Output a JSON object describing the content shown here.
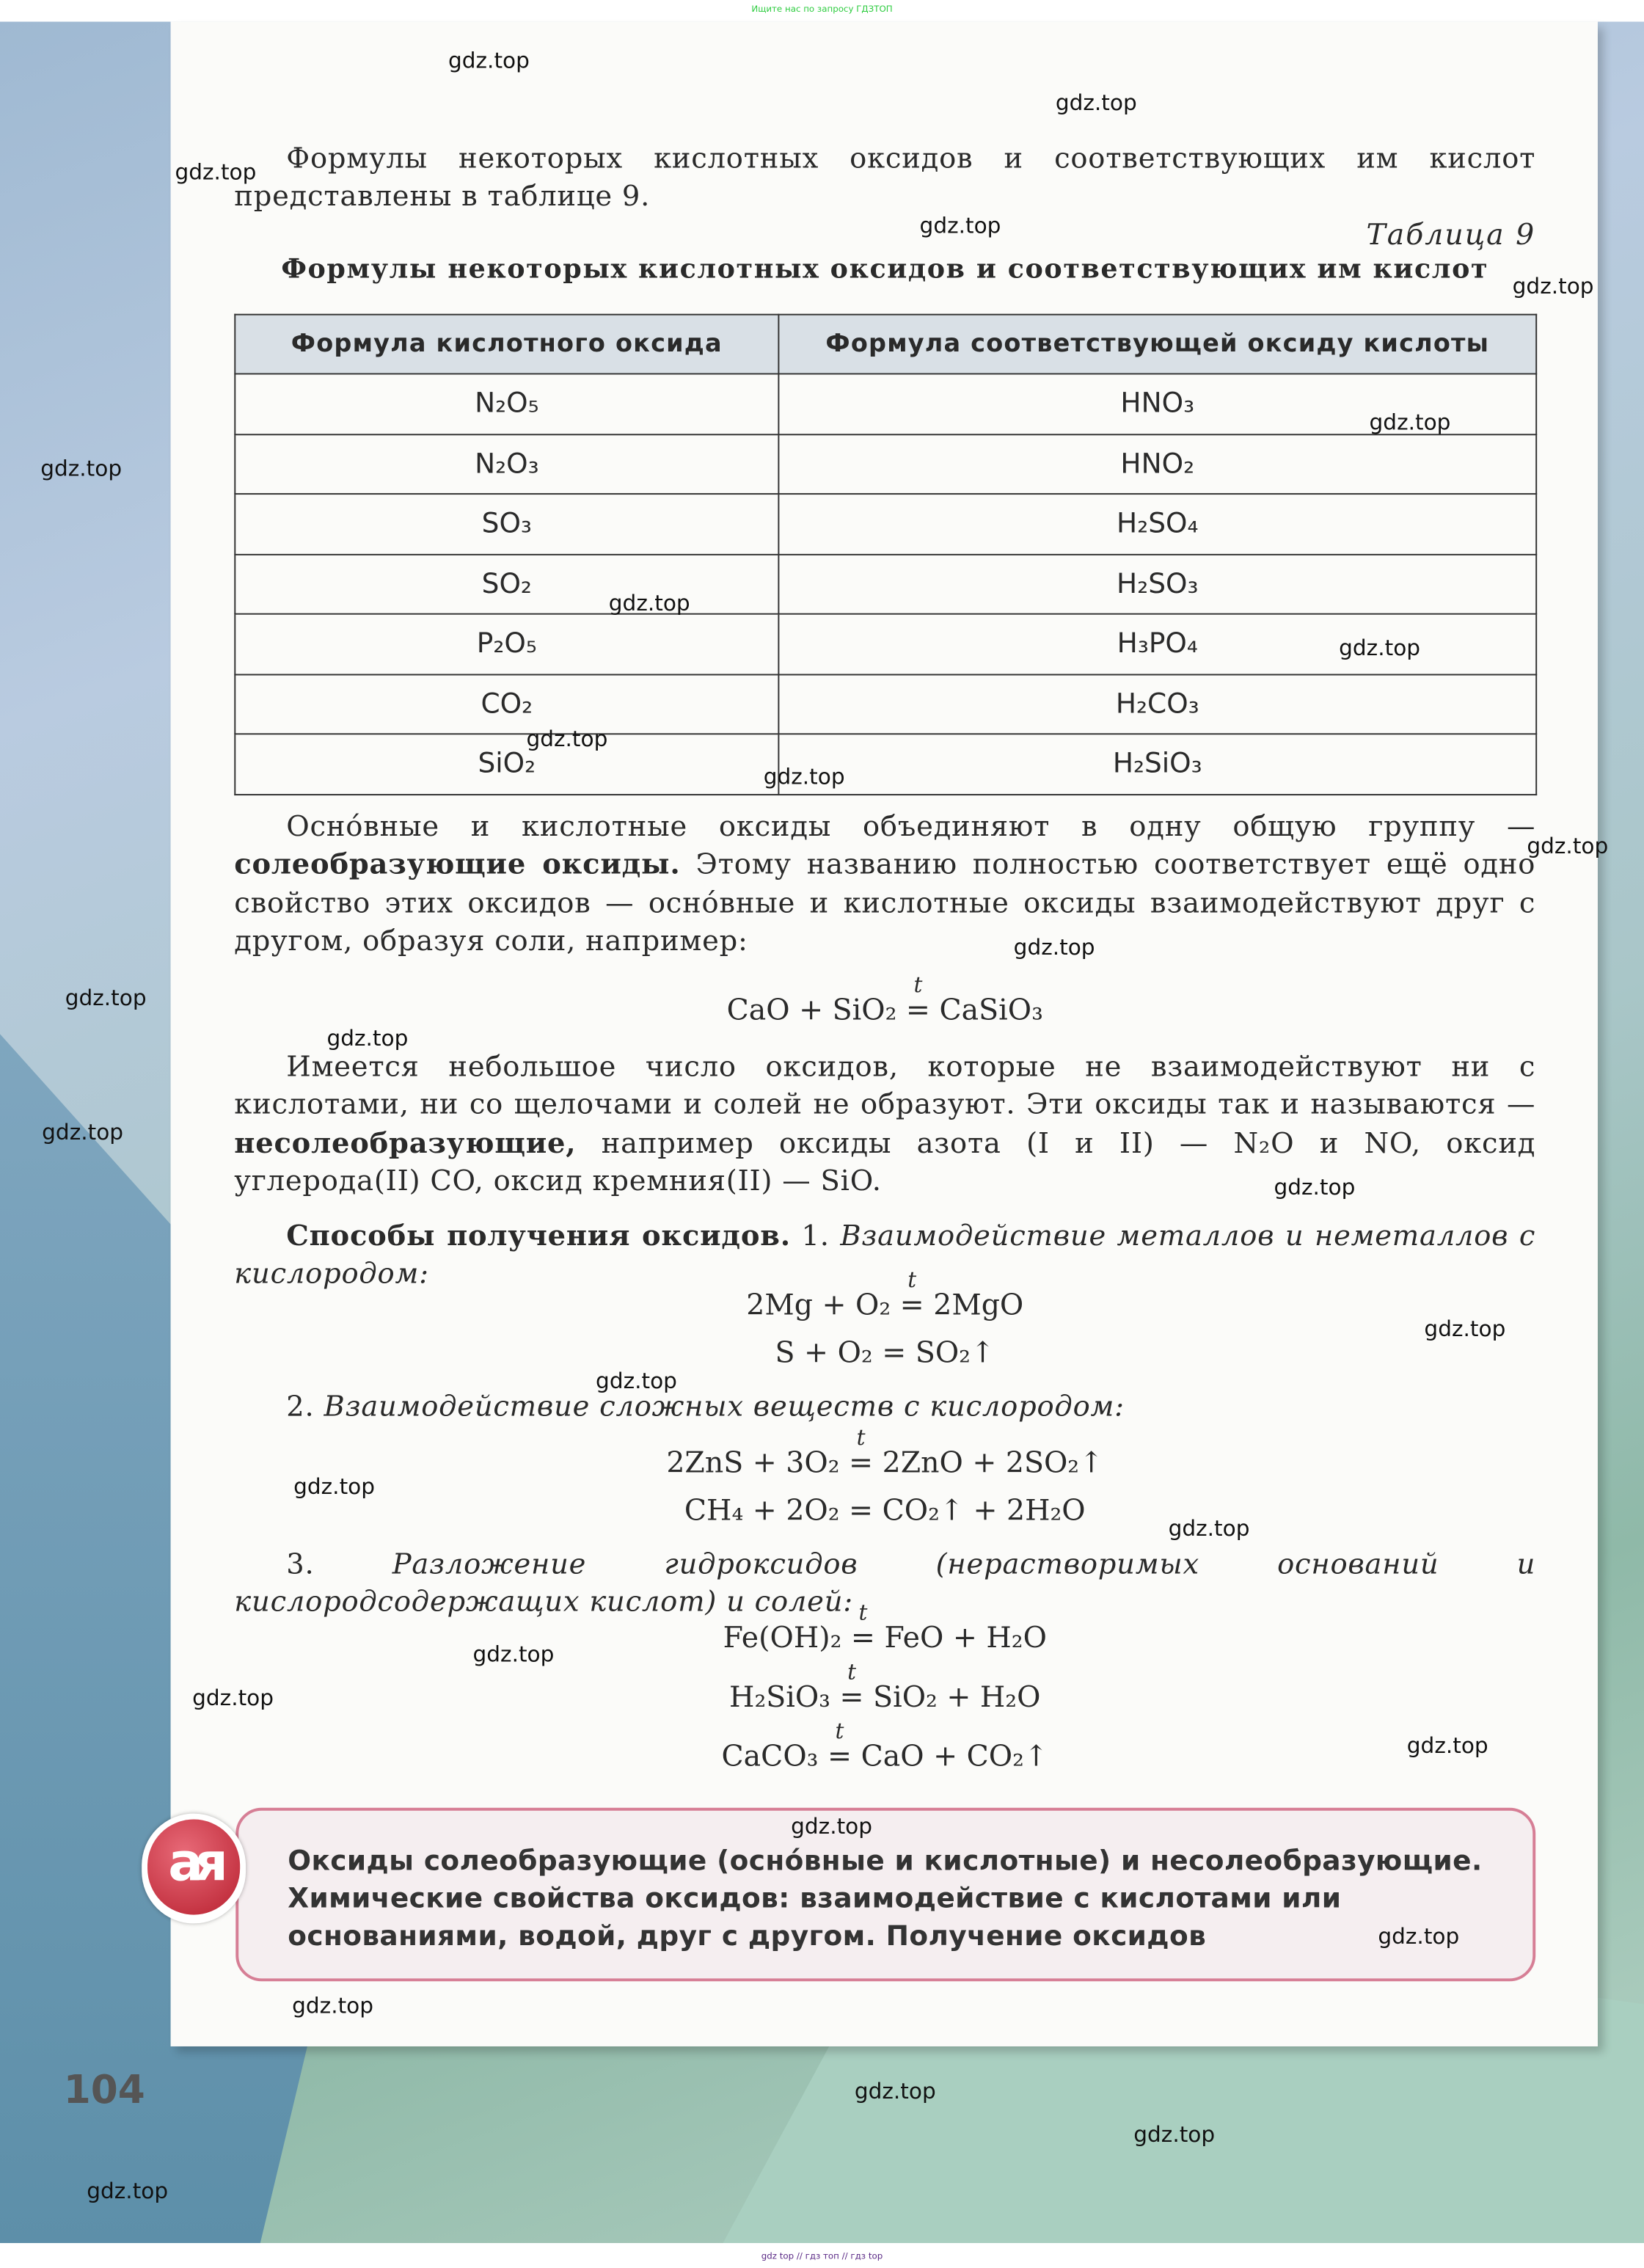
{
  "top_banner": "Ищите нас по запросу ГДЗТОП",
  "bottom_banner": "gdz top  //  гдз топ  //  гдз top",
  "watermark": "gdz.top",
  "intro": "Формулы некоторых кислотных оксидов и соответствующих им кислот представлены в таблице 9.",
  "table": {
    "caption": "Таблица 9",
    "title": "Формулы некоторых кислотных оксидов и соответствующих им кислот",
    "headers": [
      "Формула кислотного оксида",
      "Формула соответствующей оксиду кислоты"
    ],
    "rows": [
      [
        "N₂O₅",
        "HNO₃"
      ],
      [
        "N₂O₃",
        "HNO₂"
      ],
      [
        "SO₃",
        "H₂SO₄"
      ],
      [
        "SO₂",
        "H₂SO₃"
      ],
      [
        "P₂O₅",
        "H₃PO₄"
      ],
      [
        "CO₂",
        "H₂CO₃"
      ],
      [
        "SiO₂",
        "H₂SiO₃"
      ]
    ]
  },
  "para1": {
    "a": "Осно́вные и кислотные оксиды объединяют в одну общую группу — ",
    "b": "солеобразующие оксиды.",
    "c": " Этому названию полностью соответствует ещё одно свойство этих оксидов — осно́вные и кислотные оксиды взаимодействуют друг с другом, образуя соли, например:"
  },
  "eq1": {
    "left": "CaO + SiO₂ ",
    "cond": "t",
    "sign": "=",
    "right": " CaSiO₃"
  },
  "para2": {
    "a": "Имеется небольшое число оксидов, которые не взаимодействуют ни с кислотами, ни со щелочами и солей не образуют. Эти оксиды так и называются — ",
    "b": "несолеобразующие,",
    "c": " например оксиды азота (I и II) — N₂O и NO, оксид углерода(II) CO, оксид кремния(II) — SiO."
  },
  "para3": {
    "b": "Способы получения оксидов.",
    "n": " 1. ",
    "i": "Взаимодействие металлов и неметаллов с кислородом:"
  },
  "eq2": {
    "left": "2Mg + O₂ ",
    "cond": "t",
    "sign": "=",
    "right": " 2MgO"
  },
  "eq3": "S + O₂ = SO₂↑",
  "para4": {
    "n": "2. ",
    "i": "Взаимодействие сложных веществ с кислородом:"
  },
  "eq4": {
    "left": "2ZnS + 3O₂ ",
    "cond": "t",
    "sign": "=",
    "right": " 2ZnO + 2SO₂↑"
  },
  "eq5": "CH₄ + 2O₂ = CO₂↑ + 2H₂O",
  "para5": {
    "n": "3. ",
    "i": "Разложение гидроксидов (нерастворимых оснований и кислородсодержащих кислот) и солей:"
  },
  "eq6": {
    "left": "Fe(OH)₂ ",
    "cond": "t",
    "sign": "=",
    "right": " FeO + H₂O"
  },
  "eq7": {
    "left": "H₂SiO₃ ",
    "cond": "t",
    "sign": "=",
    "right": " SiO₂ + H₂O"
  },
  "eq8": {
    "left": "CaCO₃ ",
    "cond": "t",
    "sign": "=",
    "right": " CaO + CO₂↑"
  },
  "summary_logo": "ая",
  "summary": "Оксиды солеобразующие (осно́вные и кислотные) и несолеобразующие. Химические свойства оксидов: взаимодействие с кислотами или основаниями, водой, друг с другом. Получение оксидов",
  "page_number": "104"
}
